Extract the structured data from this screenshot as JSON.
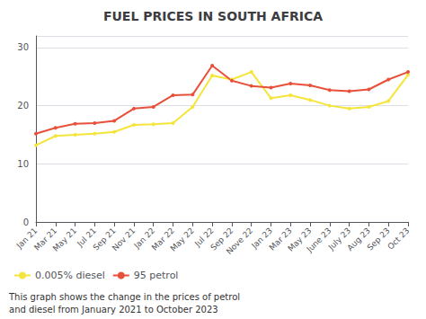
{
  "chart_data": {
    "type": "line",
    "title": "FUEL PRICES IN SOUTH AFRICA",
    "categories": [
      "Jan 21",
      "Mar 21",
      "May 21",
      "Jul 21",
      "Sep 21",
      "Nov 21",
      "Jan 22",
      "Mar 22",
      "May 22",
      "Jul 22",
      "Sep 22",
      "Nove 22",
      "Jan 23",
      "Mar 23",
      "May 23",
      "June 23",
      "July 23",
      "Aug 23",
      "Sep 23",
      "Oct 23"
    ],
    "series": [
      {
        "name": "0.005% diesel",
        "color": "#f5e53b",
        "values": [
          13.2,
          14.8,
          15.0,
          15.2,
          15.5,
          16.7,
          16.8,
          17.0,
          19.8,
          25.2,
          24.5,
          25.8,
          21.3,
          21.8,
          21.0,
          20.0,
          19.5,
          19.8,
          20.8,
          25.3
        ]
      },
      {
        "name": "95 petrol",
        "color": "#e8503a",
        "values": [
          15.2,
          16.2,
          16.9,
          17.0,
          17.4,
          19.5,
          19.8,
          21.8,
          21.9,
          26.9,
          24.3,
          23.4,
          23.1,
          23.8,
          23.5,
          22.7,
          22.5,
          22.8,
          24.5,
          25.8
        ]
      }
    ],
    "ylim": [
      0,
      32
    ],
    "yticks": [
      0,
      10,
      20,
      30
    ],
    "grid": true,
    "legend": "lower left",
    "marker": "circle",
    "annotations": [
      "This graph shows the change in the prices of petrol",
      "and diesel from January 2021 to October 2023"
    ]
  }
}
